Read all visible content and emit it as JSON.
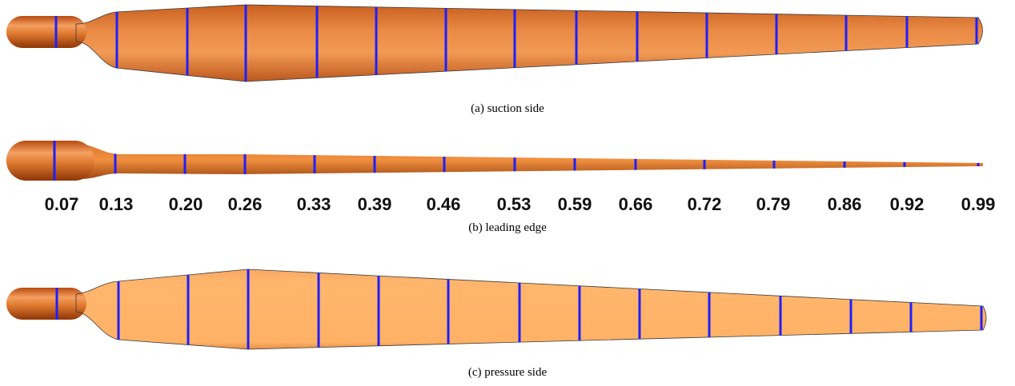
{
  "figure": {
    "panels": [
      {
        "caption": "(a) suction side"
      },
      {
        "caption": "(b) leading edge"
      },
      {
        "caption": "(c) pressure side"
      }
    ],
    "stations": [
      "0.07",
      "0.13",
      "0.20",
      "0.26",
      "0.33",
      "0.39",
      "0.46",
      "0.53",
      "0.59",
      "0.66",
      "0.72",
      "0.79",
      "0.86",
      "0.92",
      "0.99"
    ]
  }
}
